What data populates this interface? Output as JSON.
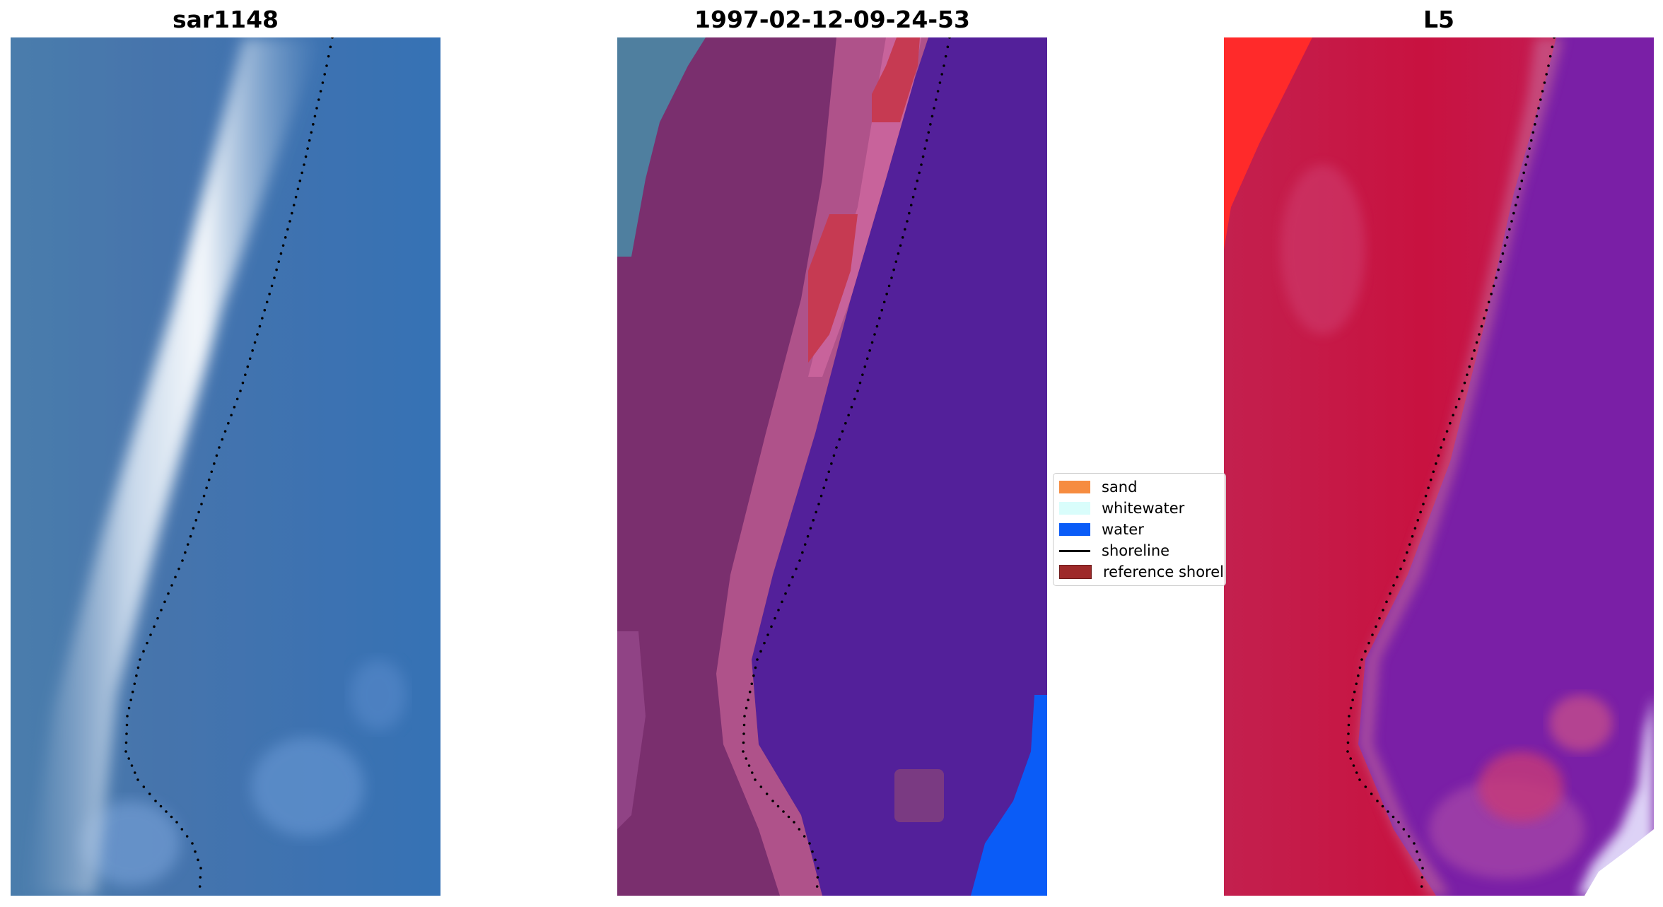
{
  "panels": [
    {
      "title": "sar1148",
      "image": "satellite-rgb-image"
    },
    {
      "title": "1997-02-12-09-24-53",
      "image": "classified-image"
    },
    {
      "title": "L5",
      "image": "false-color-image"
    }
  ],
  "legend": {
    "items": [
      {
        "label": "sand",
        "color": "#f68c40",
        "kind": "patch"
      },
      {
        "label": "whitewater",
        "color": "#d9fdfb",
        "kind": "patch"
      },
      {
        "label": "water",
        "color": "#0a5cf7",
        "kind": "patch"
      },
      {
        "label": "shoreline",
        "color": "#000000",
        "kind": "line"
      },
      {
        "label": "reference shoreline",
        "color": "#9e2a2a",
        "kind": "patch"
      }
    ]
  },
  "colors": {
    "sar_water": "#3673b3",
    "sar_breaker": "#f4f8fb",
    "class_land": "#7a2f6e",
    "class_pink": "#c06096",
    "class_water": "#53209a",
    "class_teal": "#4f7f9f",
    "class_bluewater": "#0a5cf7",
    "l5_land": "#c81240",
    "l5_water": "#7a1fa6",
    "l5_bright_red": "#ff2020"
  }
}
